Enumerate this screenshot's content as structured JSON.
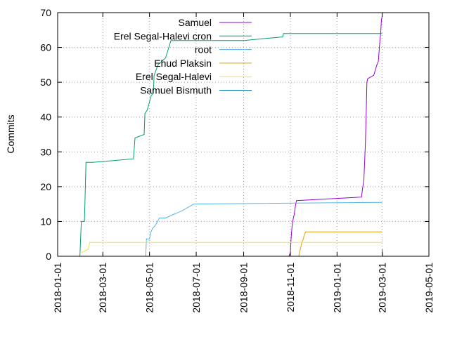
{
  "chart_data": {
    "type": "line",
    "title": "",
    "xlabel": "",
    "ylabel": "Commits",
    "x_type": "date",
    "xlim": [
      "2018-01-01",
      "2019-05-01"
    ],
    "ylim": [
      0,
      70
    ],
    "x_ticks": [
      "2018-01-01",
      "2018-03-01",
      "2018-05-01",
      "2018-07-01",
      "2018-09-01",
      "2018-11-01",
      "2019-01-01",
      "2019-03-01",
      "2019-05-01"
    ],
    "y_ticks": [
      0,
      10,
      20,
      30,
      40,
      50,
      60,
      70
    ],
    "grid": true,
    "legend_position": "top-left",
    "series": [
      {
        "name": "Samuel",
        "color": "#9400d3",
        "points": [
          [
            "2018-10-30",
            0
          ],
          [
            "2018-11-01",
            1
          ],
          [
            "2018-11-02",
            5
          ],
          [
            "2018-11-03",
            8
          ],
          [
            "2018-11-04",
            10
          ],
          [
            "2018-11-06",
            12
          ],
          [
            "2018-11-08",
            15
          ],
          [
            "2018-11-09",
            16
          ],
          [
            "2019-02-02",
            17
          ],
          [
            "2019-02-03",
            19
          ],
          [
            "2019-02-05",
            22
          ],
          [
            "2019-02-07",
            32
          ],
          [
            "2019-02-08",
            40
          ],
          [
            "2019-02-09",
            50
          ],
          [
            "2019-02-10",
            51
          ],
          [
            "2019-02-18",
            52
          ],
          [
            "2019-02-22",
            55
          ],
          [
            "2019-02-24",
            56
          ],
          [
            "2019-02-26",
            62
          ],
          [
            "2019-02-27",
            64
          ],
          [
            "2019-02-28",
            68
          ],
          [
            "2019-03-01",
            69
          ]
        ]
      },
      {
        "name": "Erel Segal-Halevi cron",
        "color": "#009e73",
        "points": [
          [
            "2018-01-30",
            0
          ],
          [
            "2018-02-01",
            10
          ],
          [
            "2018-02-05",
            10
          ],
          [
            "2018-02-07",
            27
          ],
          [
            "2018-02-15",
            27
          ],
          [
            "2018-03-15",
            27.5
          ],
          [
            "2018-04-10",
            28
          ],
          [
            "2018-04-12",
            34
          ],
          [
            "2018-04-24",
            35
          ],
          [
            "2018-04-25",
            41
          ],
          [
            "2018-04-28",
            42
          ],
          [
            "2018-05-03",
            46
          ],
          [
            "2018-05-06",
            47
          ],
          [
            "2018-05-07",
            52
          ],
          [
            "2018-05-12",
            55
          ],
          [
            "2018-05-22",
            57
          ],
          [
            "2018-05-29",
            62
          ],
          [
            "2018-09-01",
            62
          ],
          [
            "2018-10-20",
            63
          ],
          [
            "2018-10-22",
            63
          ],
          [
            "2018-10-23",
            64
          ],
          [
            "2019-03-01",
            64
          ]
        ]
      },
      {
        "name": "root",
        "color": "#56b4e9",
        "points": [
          [
            "2018-04-26",
            0
          ],
          [
            "2018-04-27",
            5
          ],
          [
            "2018-05-01",
            5
          ],
          [
            "2018-05-03",
            7
          ],
          [
            "2018-05-05",
            8
          ],
          [
            "2018-05-09",
            9
          ],
          [
            "2018-05-14",
            11
          ],
          [
            "2018-05-22",
            11
          ],
          [
            "2018-06-01",
            12
          ],
          [
            "2018-06-12",
            13
          ],
          [
            "2018-06-20",
            14
          ],
          [
            "2018-06-28",
            15
          ],
          [
            "2019-03-01",
            15.5
          ]
        ]
      },
      {
        "name": "Ehud Plaksin",
        "color": "#e69f00",
        "points": [
          [
            "2018-11-12",
            0
          ],
          [
            "2018-11-14",
            2
          ],
          [
            "2018-11-16",
            4
          ],
          [
            "2018-11-18",
            5
          ],
          [
            "2018-11-19",
            6
          ],
          [
            "2018-11-21",
            7
          ],
          [
            "2019-03-01",
            7
          ]
        ]
      },
      {
        "name": "Erel Segal-Halevi",
        "color": "#f0e442",
        "points": [
          [
            "2018-02-01",
            1
          ],
          [
            "2018-02-10",
            2
          ],
          [
            "2018-02-12",
            4
          ],
          [
            "2019-03-01",
            4
          ],
          [
            "2019-03-01",
            5
          ]
        ]
      },
      {
        "name": "Samuel Bismuth",
        "color": "#0072b2",
        "points": [
          [
            "2019-03-01",
            0
          ],
          [
            "2019-03-01",
            2
          ]
        ]
      }
    ]
  }
}
